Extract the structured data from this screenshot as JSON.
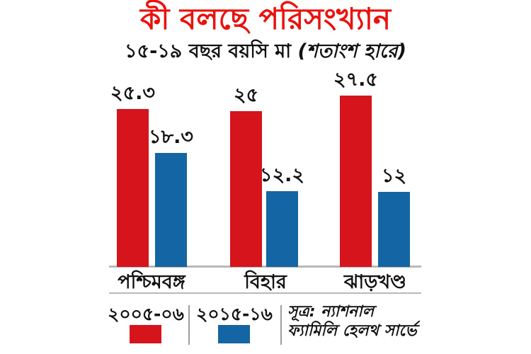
{
  "title": "কী বলছে পরিসংখ্যান",
  "subtitle": {
    "main": "১৫-১৯ বছর বয়সি মা ",
    "paren": "(শতাংশ হারে)"
  },
  "colors": {
    "title": "#e9120d",
    "red": "#d6141c",
    "blue": "#1465a3",
    "line": "#b9b9b9",
    "text": "#111111"
  },
  "chart_data": {
    "type": "bar",
    "title": "কী বলছে পরিসংখ্যান",
    "subtitle": "১৫-১৯ বছর বয়সি মা (শতাংশ হারে)",
    "categories": [
      "পশ্চিমবঙ্গ",
      "বিহার",
      "ঝাড়খণ্ড"
    ],
    "series": [
      {
        "name": "২০০৫-০৬",
        "color": "#d6141c",
        "values": [
          25.3,
          25,
          27.5
        ],
        "value_labels": [
          "২৫.৩",
          "২৫",
          "২৭.৫"
        ]
      },
      {
        "name": "২০১৫-১৬",
        "color": "#1465a3",
        "values": [
          18.3,
          12.2,
          12
        ],
        "value_labels": [
          "১৮.৩",
          "১২.২",
          "১২"
        ]
      }
    ],
    "ylim": [
      0,
      28
    ],
    "grid": false,
    "legend_position": "bottom",
    "value_labels_shown": true
  },
  "source": {
    "line1": "সূত্র: ন্যাশনাল",
    "line2": "ফ্যামিলি হেলথ সার্ভে"
  }
}
